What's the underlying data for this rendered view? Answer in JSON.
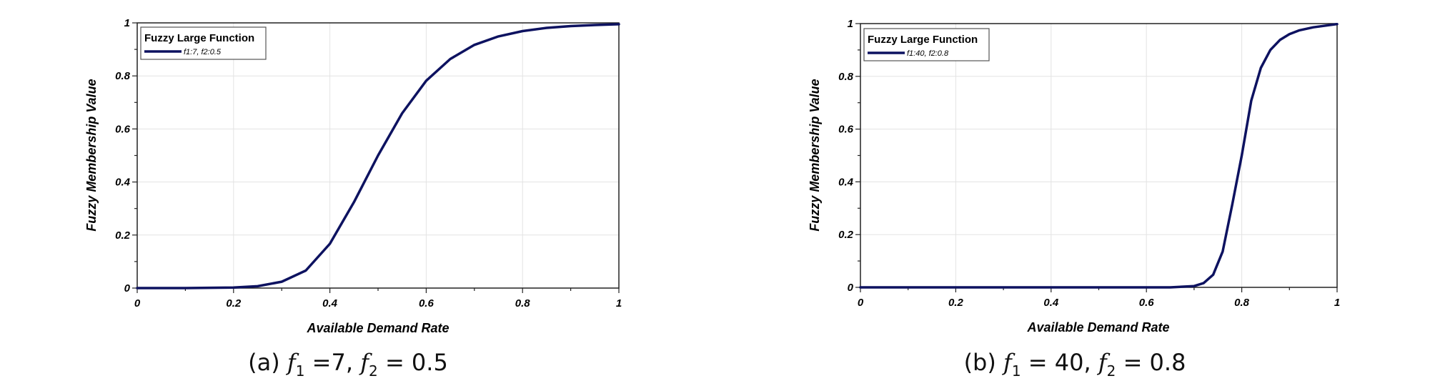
{
  "colors": {
    "line": "#0d1260",
    "grid": "#e3e3e3",
    "frame": "#222222"
  },
  "chart_data": [
    {
      "type": "line",
      "title": "",
      "xlabel": "Available Demand Rate",
      "ylabel": "Fuzzy Membership Value",
      "xlim": [
        0,
        1
      ],
      "ylim": [
        0,
        1
      ],
      "xticks": [
        "0",
        "0.2",
        "0.4",
        "0.6",
        "0.8",
        "1"
      ],
      "yticks": [
        "0",
        "0.2",
        "0.4",
        "0.6",
        "0.8",
        "1"
      ],
      "grid": true,
      "legend": {
        "title": "Fuzzy Large Function",
        "position": "top-left"
      },
      "series": [
        {
          "name": "f1:7, f2:0.5",
          "x": [
            0,
            0.1,
            0.2,
            0.25,
            0.3,
            0.35,
            0.4,
            0.45,
            0.5,
            0.55,
            0.6,
            0.65,
            0.7,
            0.75,
            0.8,
            0.85,
            0.9,
            0.95,
            1
          ],
          "y": [
            0,
            0,
            0.002,
            0.007,
            0.024,
            0.066,
            0.167,
            0.324,
            0.5,
            0.659,
            0.782,
            0.864,
            0.917,
            0.949,
            0.969,
            0.981,
            0.988,
            0.992,
            0.995
          ]
        }
      ],
      "caption": {
        "prefix": "(a) ",
        "f1": "f",
        "sub1": "1",
        "eq1": " =7, ",
        "f2": "f",
        "sub2": "2",
        "eq2": " = 0.5"
      }
    },
    {
      "type": "line",
      "title": "",
      "xlabel": "Available Demand Rate",
      "ylabel": "Fuzzy Membership Value",
      "xlim": [
        0,
        1
      ],
      "ylim": [
        0,
        1
      ],
      "xticks": [
        "0",
        "0.2",
        "0.4",
        "0.6",
        "0.8",
        "1"
      ],
      "yticks": [
        "0",
        "0.2",
        "0.4",
        "0.6",
        "0.8",
        "1"
      ],
      "grid": true,
      "legend": {
        "title": "Fuzzy Large Function",
        "position": "top-left"
      },
      "series": [
        {
          "name": "f1:40, f2:0.8",
          "x": [
            0,
            0.6,
            0.65,
            0.7,
            0.72,
            0.74,
            0.76,
            0.78,
            0.8,
            0.82,
            0.84,
            0.86,
            0.88,
            0.9,
            0.92,
            0.95,
            1
          ],
          "y": [
            0,
            0,
            0.0001,
            0.005,
            0.016,
            0.048,
            0.136,
            0.314,
            0.5,
            0.708,
            0.832,
            0.9,
            0.938,
            0.96,
            0.974,
            0.986,
            0.998
          ]
        }
      ],
      "caption": {
        "prefix": "(b) ",
        "f1": "f",
        "sub1": "1",
        "eq1": " = 40, ",
        "f2": "f",
        "sub2": "2",
        "eq2": " = 0.8"
      }
    }
  ]
}
